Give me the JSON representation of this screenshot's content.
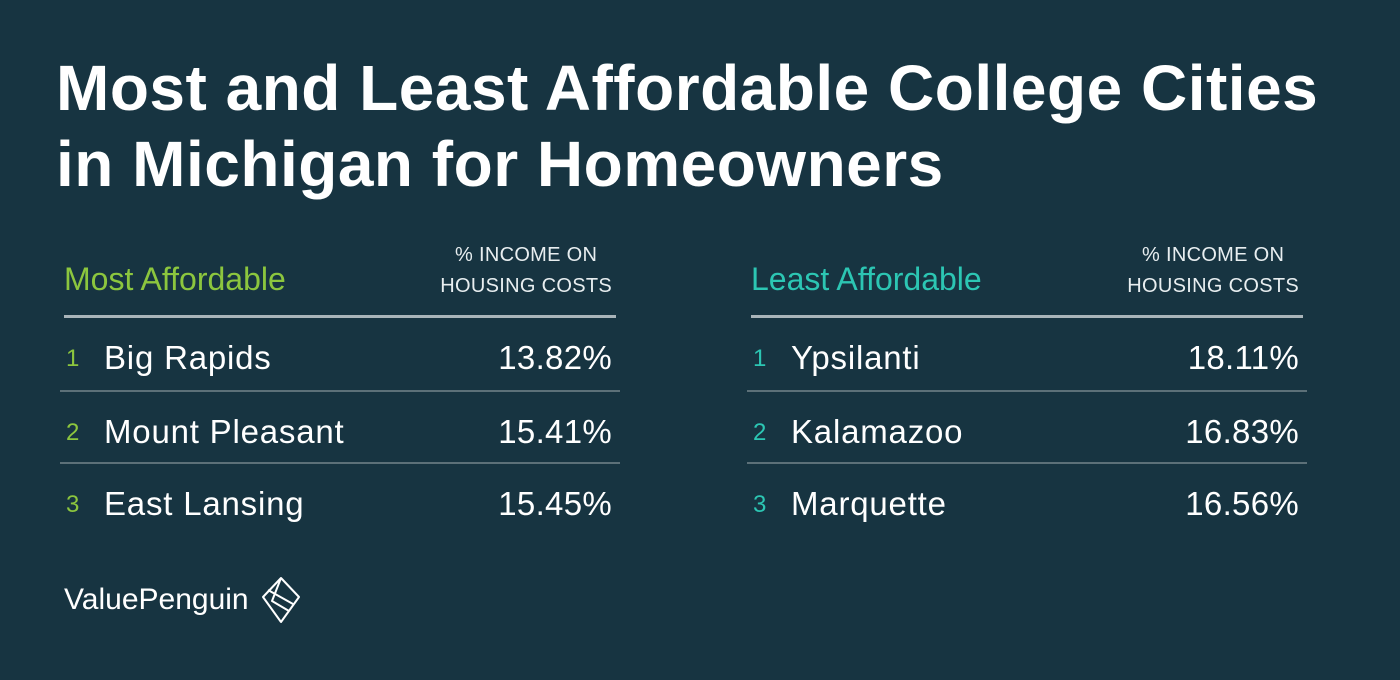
{
  "title": "Most and Least Affordable College Cities in Michigan for Homeowners",
  "most_affordable": {
    "heading": "Most Affordable",
    "column_header_line1": "% INCOME ON",
    "column_header_line2": "HOUSING COSTS",
    "accent_color": "#8cc63e",
    "rows": [
      {
        "rank": "1",
        "city": "Big Rapids",
        "value": "13.82%"
      },
      {
        "rank": "2",
        "city": "Mount Pleasant",
        "value": "15.41%"
      },
      {
        "rank": "3",
        "city": "East Lansing",
        "value": "15.45%"
      }
    ]
  },
  "least_affordable": {
    "heading": "Least Affordable",
    "column_header_line1": "% INCOME ON",
    "column_header_line2": "HOUSING COSTS",
    "accent_color": "#2cc6b3",
    "rows": [
      {
        "rank": "1",
        "city": "Ypsilanti",
        "value": "18.11%"
      },
      {
        "rank": "2",
        "city": "Kalamazoo",
        "value": "16.83%"
      },
      {
        "rank": "3",
        "city": "Marquette",
        "value": "16.56%"
      }
    ]
  },
  "brand": {
    "name": "ValuePenguin",
    "icon": "valuepenguin-logo-icon"
  },
  "colors": {
    "background": "#173441",
    "text": "#ffffff"
  }
}
